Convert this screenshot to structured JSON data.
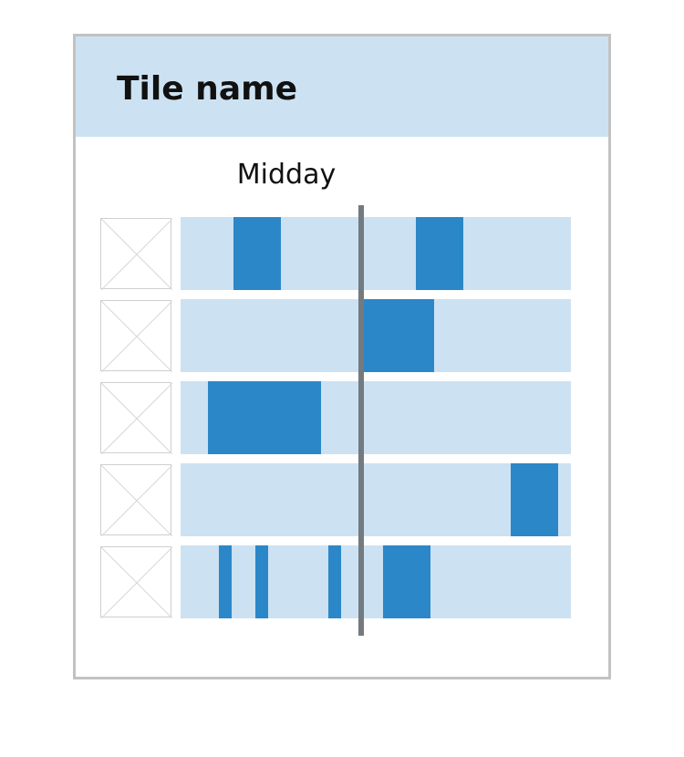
{
  "tile": {
    "title": "Tile name",
    "header_color": "#cce2f2",
    "border_color": "#c2c2c2"
  },
  "timeline": {
    "marker_label": "Midday",
    "marker_position": 0.46,
    "track_color": "#cce2f2",
    "segment_color": "#2b87c8",
    "marker_color": "#737a80",
    "rows": [
      {
        "icon": "image-placeholder-icon",
        "segments": [
          {
            "start": 0.135,
            "end": 0.257
          },
          {
            "start": 0.603,
            "end": 0.724
          }
        ]
      },
      {
        "icon": "image-placeholder-icon",
        "segments": [
          {
            "start": 0.467,
            "end": 0.65
          }
        ]
      },
      {
        "icon": "image-placeholder-icon",
        "segments": [
          {
            "start": 0.07,
            "end": 0.36
          }
        ]
      },
      {
        "icon": "image-placeholder-icon",
        "segments": [
          {
            "start": 0.846,
            "end": 0.967
          }
        ]
      },
      {
        "icon": "image-placeholder-icon",
        "segments": [
          {
            "start": 0.098,
            "end": 0.131
          },
          {
            "start": 0.192,
            "end": 0.224
          },
          {
            "start": 0.379,
            "end": 0.412
          },
          {
            "start": 0.519,
            "end": 0.641
          }
        ]
      }
    ]
  }
}
